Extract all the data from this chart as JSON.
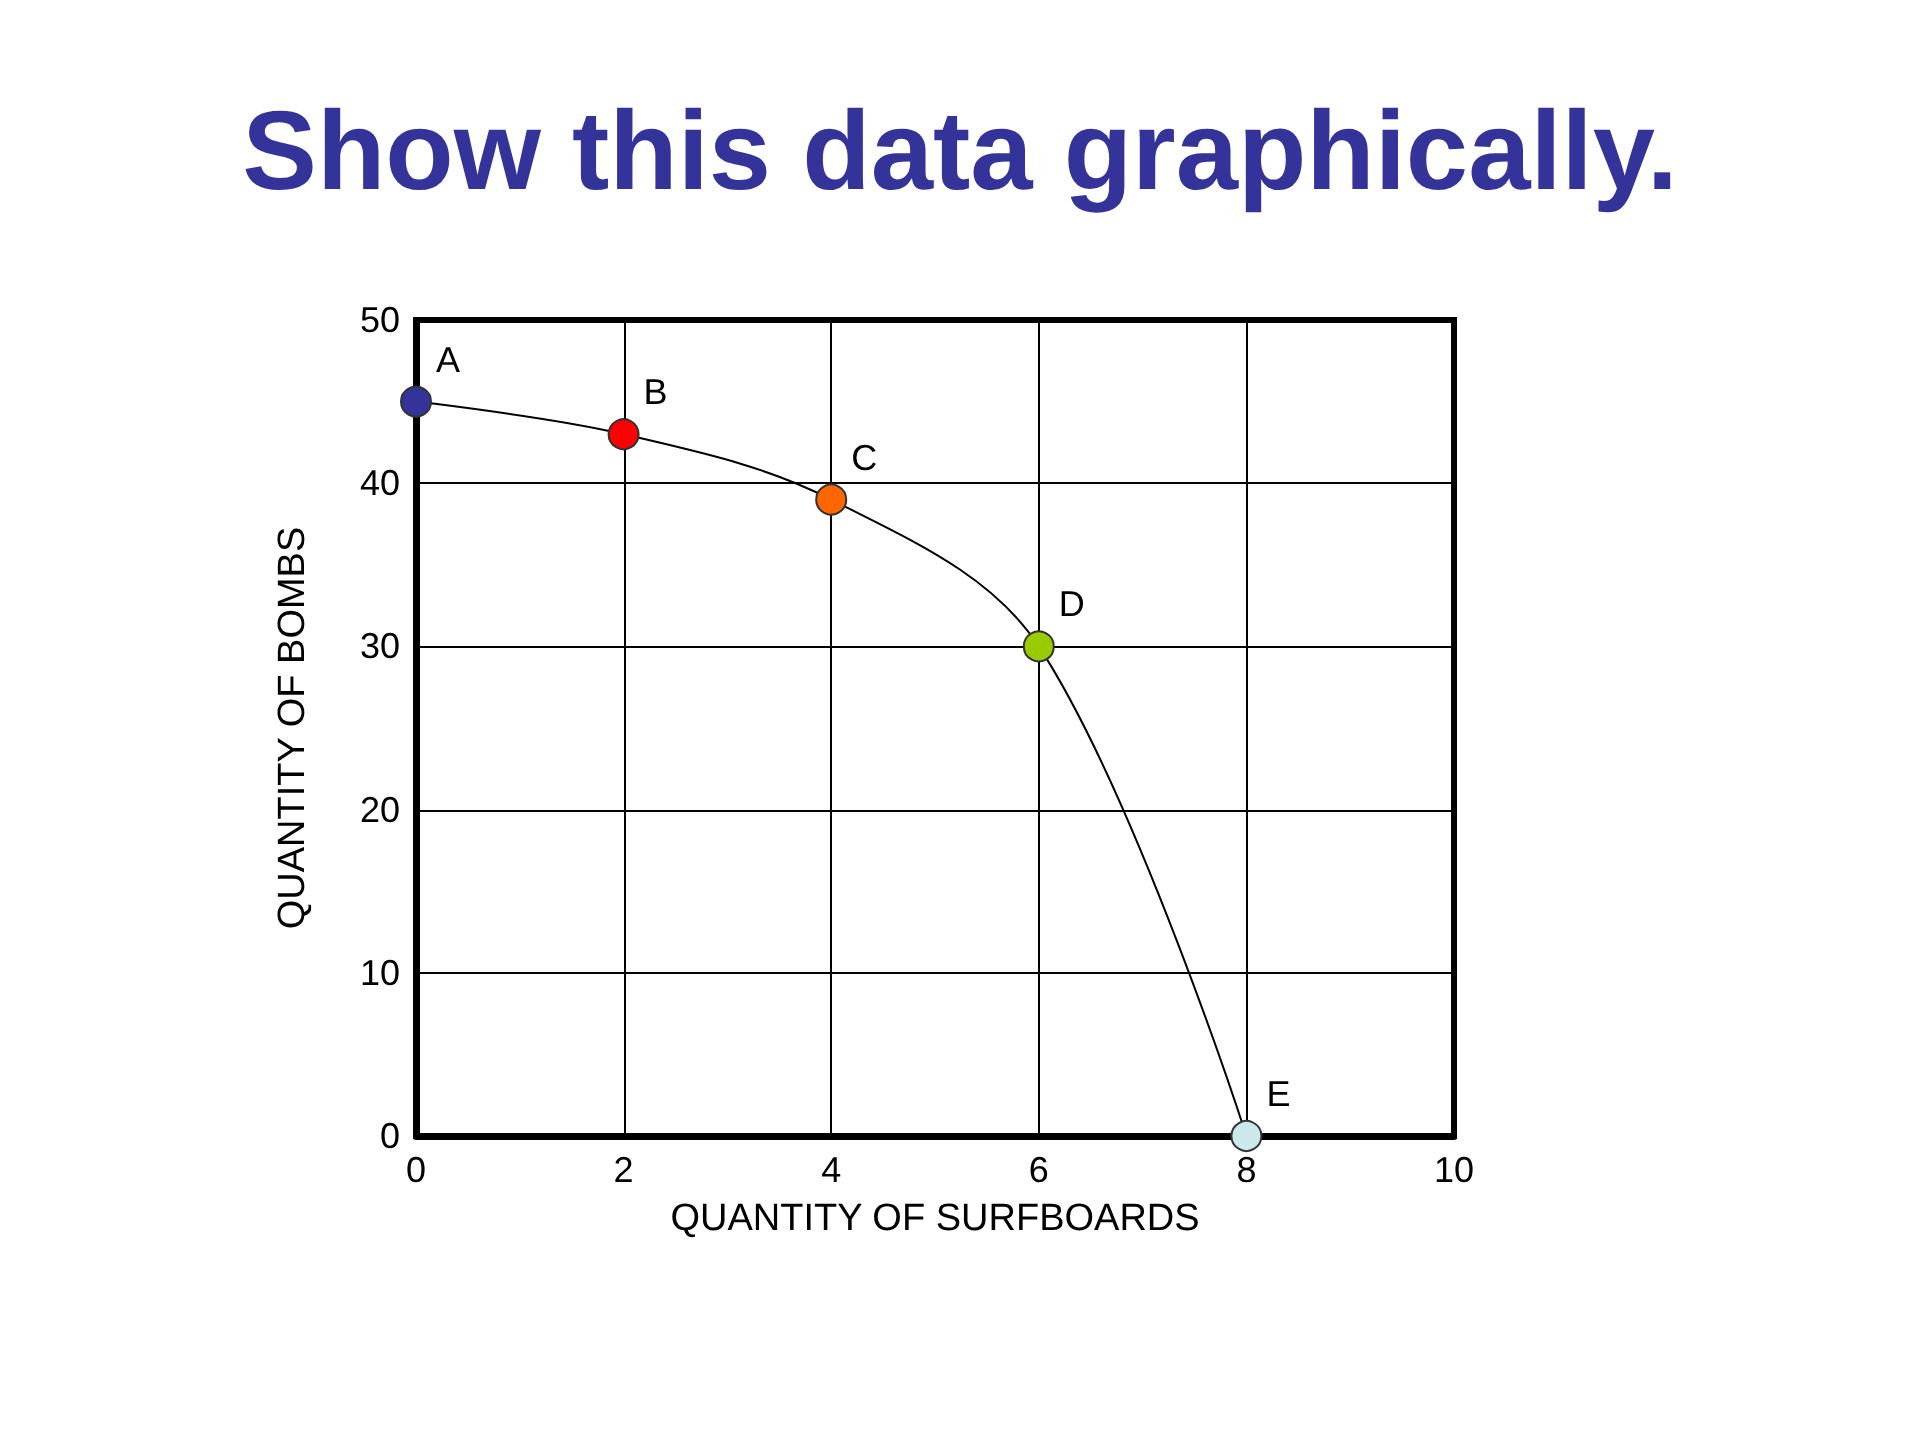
{
  "chart_data": {
    "type": "line",
    "title": "Show this data graphically.",
    "xlabel": "QUANTITY OF SURFBOARDS",
    "ylabel": "QUANTITY OF BOMBS",
    "x": [
      0,
      2,
      4,
      6,
      8
    ],
    "series": [
      {
        "color": "#000000",
        "colors": [
          "#333399",
          "#ff0000",
          "#ff6600",
          "#99cc00",
          "#cce8ec"
        ],
        "values": [
          45,
          43,
          39,
          30,
          0
        ]
      }
    ],
    "annotations": [
      {
        "text": "A",
        "x": 0,
        "y": 45
      },
      {
        "text": "B",
        "x": 2,
        "y": 43
      },
      {
        "text": "C",
        "x": 4,
        "y": 39
      },
      {
        "text": "D",
        "x": 6,
        "y": 30
      },
      {
        "text": "E",
        "x": 8,
        "y": 0
      }
    ],
    "xlim": [
      0,
      10
    ],
    "xticks": [
      0,
      2,
      4,
      6,
      8,
      10
    ],
    "ylim": [
      0,
      50
    ],
    "yticks": [
      0,
      10,
      20,
      30,
      40,
      50
    ],
    "grid": true,
    "marker": "circle",
    "line_style": "solid"
  }
}
